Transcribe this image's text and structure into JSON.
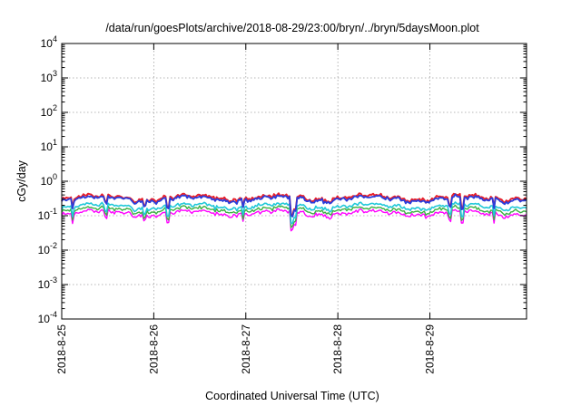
{
  "chart_data": {
    "type": "line",
    "title": "/data/run/goesPlots/archive/2018-08-29/23:00/bryn/../bryn/5daysMoon.plot",
    "xlabel": "Coordinated Universal Time (UTC)",
    "ylabel": "cGy/day",
    "y_scale": "log",
    "ylim": [
      0.0001,
      10000
    ],
    "y_ticks": [
      {
        "value": 0.0001,
        "base": "10",
        "exp": "-4"
      },
      {
        "value": 0.001,
        "base": "10",
        "exp": "-3"
      },
      {
        "value": 0.01,
        "base": "10",
        "exp": "-2"
      },
      {
        "value": 0.1,
        "base": "10",
        "exp": "-1"
      },
      {
        "value": 1,
        "base": "10",
        "exp": "0"
      },
      {
        "value": 10,
        "base": "10",
        "exp": "1"
      },
      {
        "value": 100,
        "base": "10",
        "exp": "2"
      },
      {
        "value": 1000,
        "base": "10",
        "exp": "3"
      },
      {
        "value": 10000,
        "base": "10",
        "exp": "4"
      }
    ],
    "x_range_days": [
      0,
      5.05
    ],
    "x_ticks": [
      {
        "day": 0,
        "label": "2018-8-25"
      },
      {
        "day": 1,
        "label": "2018-8-26"
      },
      {
        "day": 2,
        "label": "2018-8-27"
      },
      {
        "day": 3,
        "label": "2018-8-28"
      },
      {
        "day": 4,
        "label": "2018-8-29"
      }
    ],
    "grid": true,
    "legend": "none",
    "series": [
      {
        "name": "magenta",
        "color": "#ff00ff",
        "base": 0.12,
        "width": 1.4
      },
      {
        "name": "green",
        "color": "#3cb043",
        "base": 0.15,
        "width": 1.4
      },
      {
        "name": "cyan",
        "color": "#20c8d8",
        "base": 0.19,
        "width": 1.6
      },
      {
        "name": "red",
        "color": "#e8202a",
        "base": 0.34,
        "width": 2.0
      },
      {
        "name": "blue",
        "color": "#2a3cdc",
        "base": 0.31,
        "width": 1.8
      }
    ],
    "dips": [
      {
        "day": 0.12,
        "factor": 0.55
      },
      {
        "day": 0.48,
        "factor": 0.6
      },
      {
        "day": 0.9,
        "factor": 0.65
      },
      {
        "day": 1.15,
        "factor": 0.55
      },
      {
        "day": 1.97,
        "factor": 0.6
      },
      {
        "day": 2.5,
        "factor": 0.3
      },
      {
        "day": 2.53,
        "factor": 0.4
      },
      {
        "day": 4.22,
        "factor": 0.55
      },
      {
        "day": 4.35,
        "factor": 0.45
      },
      {
        "day": 4.7,
        "factor": 0.6
      }
    ]
  }
}
